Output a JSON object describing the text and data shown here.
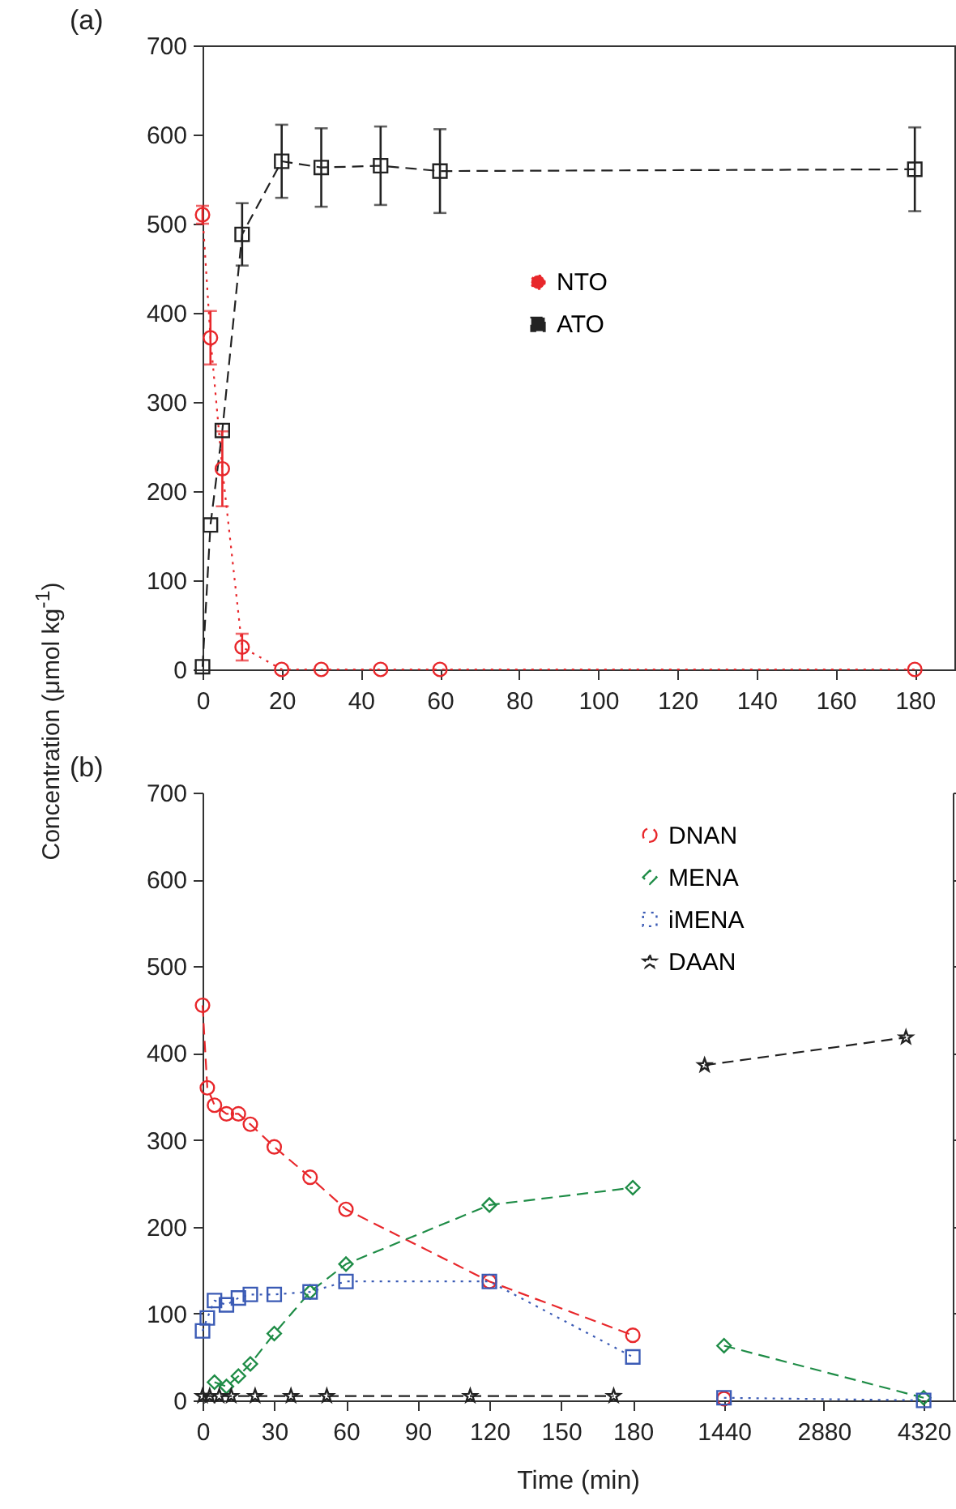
{
  "chart_data": [
    {
      "type": "line",
      "title": "(a)",
      "ylabel": "Concentration (μmol kg$^{-1}$)",
      "xlim": [
        0,
        190
      ],
      "xticks": [
        0,
        20,
        40,
        60,
        80,
        100,
        120,
        140,
        160,
        180
      ],
      "ylim": [
        0,
        700
      ],
      "yticks": [
        0,
        100,
        200,
        300,
        400,
        500,
        600,
        700
      ],
      "legend": "right",
      "series": [
        {
          "name": "NTO",
          "color": "#e8272b",
          "marker": "circle",
          "line_style": "dotted",
          "x": [
            0,
            2,
            5,
            10,
            20,
            30,
            45,
            60,
            180
          ],
          "values": [
            510,
            372,
            225,
            25,
            0,
            0,
            0,
            0,
            0
          ],
          "errors": [
            10,
            30,
            42,
            15,
            null,
            null,
            null,
            null,
            null
          ]
        },
        {
          "name": "ATO",
          "color": "#222222",
          "marker": "square",
          "line_style": "dashed",
          "x": [
            0,
            2,
            5,
            10,
            20,
            30,
            45,
            60,
            180
          ],
          "values": [
            3,
            162,
            268,
            488,
            570,
            563,
            565,
            559,
            561
          ],
          "errors": [
            null,
            null,
            null,
            35,
            41,
            44,
            44,
            47,
            47
          ]
        }
      ]
    },
    {
      "type": "line",
      "title": "(b)",
      "xlabel": "Time (min)",
      "xlim": [
        0,
        202
      ],
      "xticks": [
        0,
        30,
        60,
        90,
        120,
        150,
        180
      ],
      "ylim": [
        0,
        700
      ],
      "yticks": [
        0,
        100,
        200,
        300,
        400,
        500,
        600,
        700
      ],
      "legend": "top right",
      "series": [
        {
          "name": "DNAN",
          "color": "#e8272b",
          "marker": "circle",
          "line_style": "dashed",
          "x": [
            0,
            2,
            5,
            10,
            15,
            20,
            30,
            45,
            60,
            120,
            180
          ],
          "values": [
            455,
            360,
            340,
            330,
            330,
            318,
            292,
            257,
            220,
            137,
            75
          ]
        },
        {
          "name": "MENA",
          "color": "#1e8c46",
          "marker": "diamond",
          "line_style": "dashed",
          "x": [
            5,
            10,
            15,
            20,
            30,
            45,
            60,
            120,
            180
          ],
          "values": [
            21,
            16,
            28,
            42,
            77,
            125,
            157,
            225,
            245
          ]
        },
        {
          "name": "iMENA",
          "color": "#3b5bb5",
          "marker": "square",
          "line_style": "dotted",
          "x": [
            0,
            2,
            5,
            10,
            15,
            20,
            30,
            45,
            60,
            120,
            180
          ],
          "values": [
            80,
            95,
            115,
            110,
            118,
            122,
            122,
            125,
            137,
            137,
            50
          ]
        },
        {
          "name": "DAAN",
          "color": "#222222",
          "marker": "star",
          "line_style": "dashed",
          "x": [
            0,
            3,
            7,
            12,
            22,
            37,
            52,
            112,
            172
          ],
          "values": [
            5,
            5,
            5,
            5,
            5,
            5,
            5,
            5,
            5
          ]
        }
      ]
    },
    {
      "type": "line",
      "xlim": [
        883,
        4740
      ],
      "xticks": [
        1440,
        2880,
        4320
      ],
      "ylim": [
        0,
        700
      ],
      "yticks": [
        0,
        100,
        200,
        300,
        400,
        500,
        600,
        700
      ],
      "tick_labels": "x",
      "series": [
        {
          "color": "#e8272b",
          "marker": "circle",
          "line_style": "dashed",
          "x": [
            1440
          ],
          "values": [
            2
          ]
        },
        {
          "color": "#1e8c46",
          "marker": "diamond",
          "line_style": "dashed",
          "x": [
            1440,
            4320
          ],
          "values": [
            63,
            3
          ]
        },
        {
          "color": "#3b5bb5",
          "marker": "square",
          "line_style": "dotted",
          "x": [
            1440,
            4320
          ],
          "values": [
            3,
            0
          ]
        },
        {
          "color": "#222222",
          "marker": "star",
          "line_style": "dashed",
          "x": [
            1160,
            4065
          ],
          "values": [
            386,
            418
          ]
        }
      ]
    }
  ]
}
